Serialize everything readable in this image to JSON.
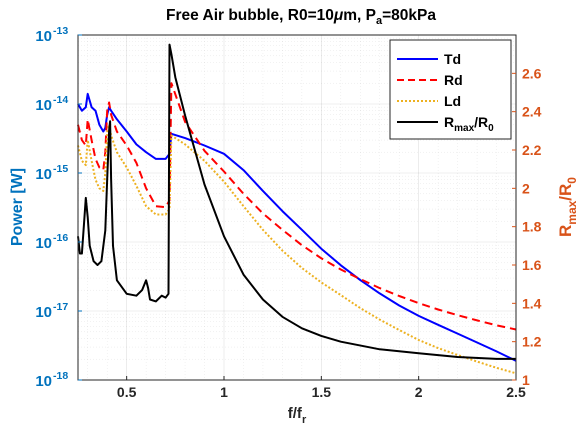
{
  "chart_data": {
    "type": "line",
    "title": {
      "main": "Free Air bubble, R0=10",
      "mu": "μ",
      "unit": "m, P",
      "sub": "a",
      "tail": "=80kPa"
    },
    "xlabel": {
      "main": "f/f",
      "sub": "r"
    },
    "ylabel_left": "Power [W]",
    "ylabel_right": {
      "main": "R",
      "sub1": "max",
      "mid": "/R",
      "sub2": "0"
    },
    "xlim": [
      0.25,
      2.5
    ],
    "ylim_left": [
      1e-18,
      1e-13
    ],
    "ylim_right": [
      1.0,
      2.8
    ],
    "left_scale": "log",
    "grid": true,
    "legend_position": "top-right",
    "x_ticks": [
      0.5,
      1,
      1.5,
      2,
      2.5
    ],
    "x_tick_labels": [
      "0.5",
      "1",
      "1.5",
      "2",
      "2.5"
    ],
    "left_ticks": [
      {
        "base": "10",
        "exp": "-18",
        "value": 1e-18
      },
      {
        "base": "10",
        "exp": "-17",
        "value": 1e-17
      },
      {
        "base": "10",
        "exp": "-16",
        "value": 1e-16
      },
      {
        "base": "10",
        "exp": "-15",
        "value": 1e-15
      },
      {
        "base": "10",
        "exp": "-14",
        "value": 1e-14
      },
      {
        "base": "10",
        "exp": "-13",
        "value": 1e-13
      }
    ],
    "right_ticks": [
      1,
      1.2,
      1.4,
      1.6,
      1.8,
      2,
      2.2,
      2.4,
      2.6
    ],
    "right_tick_labels": [
      "1",
      "1.2",
      "1.4",
      "1.6",
      "1.8",
      "2",
      "2.2",
      "2.4",
      "2.6"
    ],
    "colors": {
      "left_axis": "#0072BD",
      "right_axis": "#D95319",
      "Td": "#0000FF",
      "Rd": "#FF0000",
      "Ld": "#EDB120",
      "Rmax": "#000000"
    },
    "series": [
      {
        "name": "Td",
        "axis": "left",
        "style": "solid",
        "color": "#0000FF",
        "x": [
          0.25,
          0.27,
          0.29,
          0.3,
          0.32,
          0.34,
          0.36,
          0.38,
          0.39,
          0.4,
          0.41,
          0.42,
          0.45,
          0.5,
          0.55,
          0.6,
          0.65,
          0.7,
          0.72,
          0.73,
          0.8,
          0.9,
          1.0,
          1.1,
          1.2,
          1.3,
          1.4,
          1.5,
          1.6,
          1.7,
          1.8,
          1.9,
          2.0,
          2.1,
          2.2,
          2.3,
          2.4,
          2.5
        ],
        "y": [
          1e-14,
          8e-15,
          9e-15,
          1.4e-14,
          9e-15,
          8e-15,
          5e-15,
          4e-15,
          4.5e-15,
          7e-15,
          9e-15,
          8e-15,
          6e-15,
          4e-15,
          2.6e-15,
          2e-15,
          1.6e-15,
          1.6e-15,
          1.9e-15,
          3.7e-15,
          3.2e-15,
          2.5e-15,
          1.9e-15,
          1.1e-15,
          5.5e-16,
          2.8e-16,
          1.5e-16,
          8e-17,
          4.6e-17,
          2.8e-17,
          1.8e-17,
          1.2e-17,
          8.5e-18,
          6.3e-18,
          4.7e-18,
          3.5e-18,
          2.6e-18,
          1.9e-18
        ]
      },
      {
        "name": "Rd",
        "axis": "left",
        "style": "dashed",
        "color": "#FF0000",
        "x": [
          0.25,
          0.27,
          0.29,
          0.3,
          0.32,
          0.34,
          0.36,
          0.38,
          0.39,
          0.4,
          0.41,
          0.42,
          0.45,
          0.5,
          0.55,
          0.6,
          0.65,
          0.7,
          0.72,
          0.73,
          0.8,
          0.9,
          1.0,
          1.1,
          1.2,
          1.3,
          1.4,
          1.5,
          1.6,
          1.7,
          1.8,
          1.9,
          2.0,
          2.1,
          2.2,
          2.3,
          2.4,
          2.5
        ],
        "y": [
          5e-15,
          3e-15,
          2.5e-15,
          6e-15,
          3e-15,
          1.6e-15,
          1.2e-15,
          1.1e-15,
          2e-15,
          8e-15,
          1.05e-14,
          7e-15,
          4e-15,
          2.5e-15,
          1.4e-15,
          6e-16,
          3.3e-16,
          3.2e-16,
          4e-16,
          2e-14,
          5.5e-15,
          2.1e-15,
          1.05e-15,
          5e-16,
          2.6e-16,
          1.5e-16,
          9e-17,
          5.8e-17,
          4e-17,
          2.9e-17,
          2.15e-17,
          1.65e-17,
          1.3e-17,
          1.05e-17,
          8.7e-18,
          7.3e-18,
          6.2e-18,
          5.4e-18
        ]
      },
      {
        "name": "Ld",
        "axis": "left",
        "style": "dotted",
        "color": "#EDB120",
        "x": [
          0.25,
          0.27,
          0.29,
          0.3,
          0.32,
          0.34,
          0.36,
          0.38,
          0.39,
          0.4,
          0.41,
          0.42,
          0.45,
          0.5,
          0.55,
          0.6,
          0.65,
          0.7,
          0.72,
          0.73,
          0.8,
          0.9,
          1.0,
          1.1,
          1.2,
          1.3,
          1.4,
          1.5,
          1.6,
          1.7,
          1.8,
          1.9,
          2.0,
          2.1,
          2.2,
          2.3,
          2.4,
          2.5
        ],
        "y": [
          2.5e-15,
          1.5e-15,
          1.3e-15,
          3e-15,
          1.5e-15,
          8e-16,
          6e-16,
          5.5e-16,
          1e-15,
          4e-15,
          5e-15,
          3.5e-15,
          2e-15,
          1.2e-15,
          6.5e-16,
          3.3e-16,
          2.5e-16,
          2.5e-16,
          3e-16,
          3.5e-15,
          2.6e-15,
          1.5e-15,
          7.5e-16,
          3.3e-16,
          1.5e-16,
          7.5e-17,
          4.2e-17,
          2.6e-17,
          1.7e-17,
          1.1e-17,
          7.5e-18,
          5.3e-18,
          3.8e-18,
          2.9e-18,
          2.3e-18,
          1.85e-18,
          1.5e-18,
          1.25e-18
        ]
      },
      {
        "name": "R_max/R_0",
        "axis": "right",
        "style": "solid",
        "color": "#000000",
        "x": [
          0.25,
          0.26,
          0.27,
          0.28,
          0.29,
          0.3,
          0.31,
          0.33,
          0.35,
          0.37,
          0.39,
          0.4,
          0.41,
          0.415,
          0.42,
          0.43,
          0.45,
          0.5,
          0.55,
          0.58,
          0.6,
          0.61,
          0.62,
          0.65,
          0.68,
          0.7,
          0.715,
          0.72,
          0.73,
          0.75,
          0.8,
          0.85,
          0.9,
          1.0,
          1.1,
          1.2,
          1.3,
          1.4,
          1.5,
          1.6,
          1.8,
          2.0,
          2.2,
          2.4,
          2.5
        ],
        "y": [
          1.75,
          1.66,
          1.66,
          1.8,
          1.95,
          1.85,
          1.7,
          1.62,
          1.6,
          1.62,
          1.78,
          2.05,
          2.3,
          2.35,
          2.05,
          1.7,
          1.52,
          1.45,
          1.44,
          1.47,
          1.52,
          1.48,
          1.42,
          1.41,
          1.44,
          1.43,
          1.45,
          2.75,
          2.7,
          2.58,
          2.38,
          2.2,
          2.02,
          1.75,
          1.55,
          1.42,
          1.33,
          1.27,
          1.23,
          1.2,
          1.16,
          1.14,
          1.12,
          1.11,
          1.11
        ]
      }
    ],
    "legend": [
      {
        "label": "Td",
        "style": "solid",
        "color": "#0000FF"
      },
      {
        "label": "Rd",
        "style": "dashed",
        "color": "#FF0000"
      },
      {
        "label": "Ld",
        "style": "dotted",
        "color": "#EDB120"
      },
      {
        "label_main": "R",
        "label_sub1": "max",
        "label_mid": "/R",
        "label_sub2": "0",
        "style": "solid",
        "color": "#000000"
      }
    ]
  }
}
